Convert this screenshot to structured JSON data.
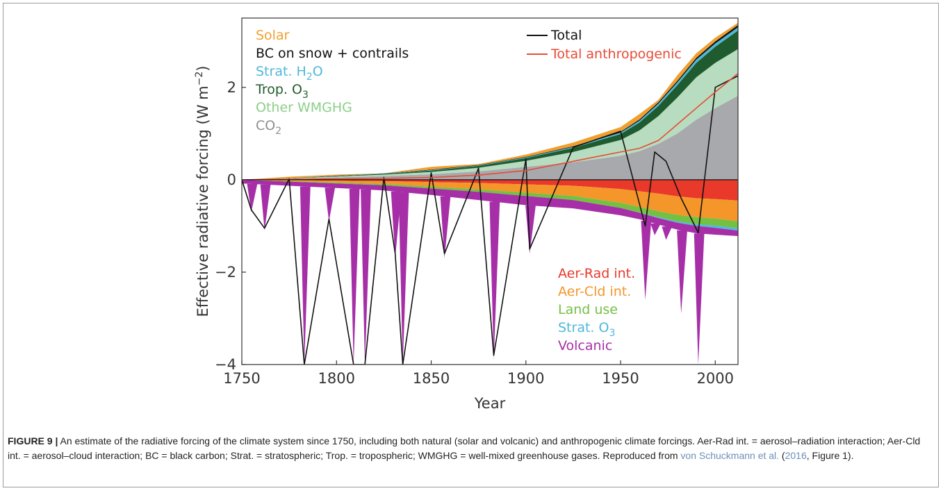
{
  "caption": {
    "label": "FIGURE 9 |",
    "text1": " An estimate of the radiative forcing of the climate system since 1750, including both natural (solar and volcanic) and anthropogenic climate forcings. Aer-Rad int. = aerosol–radiation interaction; Aer-Cld int. = aerosol–cloud interaction; BC = black carbon; Strat. = stratospheric; Trop. = tropospheric; WMGHG = well-mixed greenhouse gases. Reproduced from ",
    "ref_name": "von Schuckmann et al.",
    "text2": " (",
    "ref_year": "2016",
    "text3": ", Figure 1)."
  },
  "chart_data": {
    "type": "area",
    "xlabel": "Year",
    "ylabel": "Effective radiative forcing (W m",
    "ylabel_sup": "−2",
    "ylabel_end": ")",
    "xlim": [
      1750,
      2012
    ],
    "ylim": [
      -4,
      3.5
    ],
    "xticks": [
      1750,
      1800,
      1850,
      1900,
      1950,
      2000
    ],
    "yticks": [
      {
        "value": -4,
        "label": "−4"
      },
      {
        "value": -2,
        "label": "−2"
      },
      {
        "value": 0,
        "label": "0"
      },
      {
        "value": 2,
        "label": "2"
      }
    ],
    "grid": false,
    "zero_line": true,
    "x": [
      1750,
      1775,
      1800,
      1825,
      1850,
      1875,
      1900,
      1925,
      1950,
      1960,
      1970,
      1980,
      1990,
      2000,
      2012
    ],
    "positive_series": [
      {
        "name": "CO2",
        "color": "#a8a9ac",
        "values": [
          0.0,
          0.02,
          0.05,
          0.08,
          0.12,
          0.18,
          0.28,
          0.38,
          0.52,
          0.62,
          0.78,
          1.0,
          1.3,
          1.55,
          1.82
        ]
      },
      {
        "name": "Other WMGHG",
        "color": "#b7dcc0",
        "values": [
          0.0,
          0.01,
          0.02,
          0.03,
          0.05,
          0.08,
          0.13,
          0.22,
          0.34,
          0.45,
          0.6,
          0.78,
          0.92,
          0.98,
          1.01
        ]
      },
      {
        "name": "Trop. O3",
        "color": "#1f5b2e",
        "values": [
          0.0,
          0.005,
          0.01,
          0.02,
          0.03,
          0.04,
          0.06,
          0.09,
          0.13,
          0.17,
          0.22,
          0.27,
          0.31,
          0.35,
          0.4
        ]
      },
      {
        "name": "Strat. H2O",
        "color": "#4fb8d8",
        "values": [
          0.0,
          0.0,
          0.005,
          0.005,
          0.01,
          0.01,
          0.015,
          0.02,
          0.03,
          0.04,
          0.05,
          0.06,
          0.07,
          0.07,
          0.07
        ]
      },
      {
        "name": "BC on snow + contrails",
        "color": "#111111",
        "values": [
          0.0,
          0.0,
          0.005,
          0.005,
          0.01,
          0.01,
          0.01,
          0.015,
          0.02,
          0.025,
          0.03,
          0.035,
          0.04,
          0.045,
          0.05
        ]
      },
      {
        "name": "Solar",
        "color": "#f0a030",
        "values": [
          0.0,
          0.03,
          0.02,
          0.0,
          0.06,
          0.02,
          0.05,
          0.08,
          0.1,
          0.12,
          0.05,
          0.12,
          0.1,
          0.08,
          0.05
        ]
      }
    ],
    "negative_series": [
      {
        "name": "Aer-Rad int.",
        "color": "#e8392a",
        "values": [
          0.0,
          -0.01,
          -0.02,
          -0.03,
          -0.05,
          -0.07,
          -0.1,
          -0.13,
          -0.2,
          -0.25,
          -0.3,
          -0.36,
          -0.4,
          -0.42,
          -0.45
        ]
      },
      {
        "name": "Aer-Cld int.",
        "color": "#f5962a",
        "values": [
          0.0,
          -0.02,
          -0.04,
          -0.06,
          -0.1,
          -0.14,
          -0.18,
          -0.22,
          -0.3,
          -0.34,
          -0.38,
          -0.4,
          -0.41,
          -0.42,
          -0.45
        ]
      },
      {
        "name": "Land use",
        "color": "#74c043",
        "values": [
          0.0,
          -0.01,
          -0.02,
          -0.03,
          -0.04,
          -0.05,
          -0.07,
          -0.09,
          -0.11,
          -0.12,
          -0.13,
          -0.14,
          -0.15,
          -0.15,
          -0.15
        ]
      },
      {
        "name": "Strat. O3",
        "color": "#4fb8d8",
        "values": [
          0.0,
          0.0,
          0.0,
          0.0,
          0.0,
          0.0,
          0.0,
          0.0,
          0.0,
          -0.005,
          -0.02,
          -0.03,
          -0.04,
          -0.05,
          -0.05
        ]
      },
      {
        "name": "Volcanic",
        "color": "#a62fa8",
        "values": [
          -0.08,
          -0.09,
          -0.1,
          -0.11,
          -0.14,
          -0.18,
          -0.2,
          -0.18,
          -0.16,
          -0.14,
          -0.14,
          -0.15,
          -0.16,
          -0.15,
          -0.12
        ]
      }
    ],
    "volcanic_spikes": [
      {
        "year": 1755,
        "value": -0.7
      },
      {
        "year": 1762,
        "value": -1.1
      },
      {
        "year": 1783,
        "value": -4.0
      },
      {
        "year": 1796,
        "value": -0.9
      },
      {
        "year": 1809,
        "value": -4.0
      },
      {
        "year": 1815,
        "value": -4.0
      },
      {
        "year": 1831,
        "value": -1.7
      },
      {
        "year": 1835,
        "value": -4.0
      },
      {
        "year": 1857,
        "value": -1.7
      },
      {
        "year": 1883,
        "value": -3.9
      },
      {
        "year": 1902,
        "value": -1.6
      },
      {
        "year": 1963,
        "value": -2.6
      },
      {
        "year": 1968,
        "value": -1.2
      },
      {
        "year": 1974,
        "value": -1.3
      },
      {
        "year": 1982,
        "value": -2.9
      },
      {
        "year": 1991,
        "value": -4.0
      }
    ],
    "lines": [
      {
        "name": "Total",
        "color": "#111111",
        "x": [
          1750,
          1755,
          1762,
          1775,
          1783,
          1796,
          1809,
          1815,
          1825,
          1831,
          1835,
          1850,
          1857,
          1875,
          1883,
          1900,
          1902,
          1925,
          1950,
          1963,
          1968,
          1974,
          1982,
          1991,
          2000,
          2012
        ],
        "y": [
          0.0,
          -0.65,
          -1.05,
          0.02,
          -4.0,
          -0.85,
          -4.0,
          -4.0,
          0.05,
          -1.6,
          -4.0,
          0.15,
          -1.6,
          0.25,
          -3.8,
          0.45,
          -1.5,
          0.7,
          1.05,
          -1.0,
          0.6,
          0.4,
          -0.4,
          -1.15,
          2.0,
          2.25
        ]
      },
      {
        "name": "Total anthropogenic",
        "color": "#e84a35",
        "x": [
          1750,
          1775,
          1800,
          1825,
          1850,
          1875,
          1900,
          1925,
          1950,
          1960,
          1970,
          1980,
          1990,
          2000,
          2012
        ],
        "y": [
          0.0,
          0.01,
          0.02,
          0.03,
          0.05,
          0.1,
          0.2,
          0.4,
          0.6,
          0.68,
          0.85,
          1.2,
          1.55,
          1.9,
          2.3
        ]
      }
    ],
    "legend_top_left": [
      {
        "label": "Solar",
        "color": "#f0a030"
      },
      {
        "label": "BC on snow + contrails",
        "color": "#111111"
      },
      {
        "label": "Strat. H",
        "sub": "2",
        "after": "O",
        "color": "#4fb8d8"
      },
      {
        "label": "Trop. O",
        "sub": "3",
        "after": "",
        "color": "#1f5b2e"
      },
      {
        "label": "Other WMGHG",
        "color": "#8ccf8a"
      },
      {
        "label": "CO",
        "sub": "2",
        "after": "",
        "color": "#8e8f92"
      }
    ],
    "legend_bottom_right": [
      {
        "label": "Aer-Rad int.",
        "color": "#e8392a"
      },
      {
        "label": "Aer-Cld int.",
        "color": "#f5962a"
      },
      {
        "label": "Land use",
        "color": "#74c043"
      },
      {
        "label": "Strat. O",
        "sub": "3",
        "after": "",
        "color": "#4fb8d8"
      },
      {
        "label": "Volcanic",
        "color": "#a62fa8"
      }
    ],
    "legend_lines": [
      {
        "label": "Total",
        "color": "#111111"
      },
      {
        "label": "Total anthropogenic",
        "color": "#e84a35"
      }
    ]
  }
}
